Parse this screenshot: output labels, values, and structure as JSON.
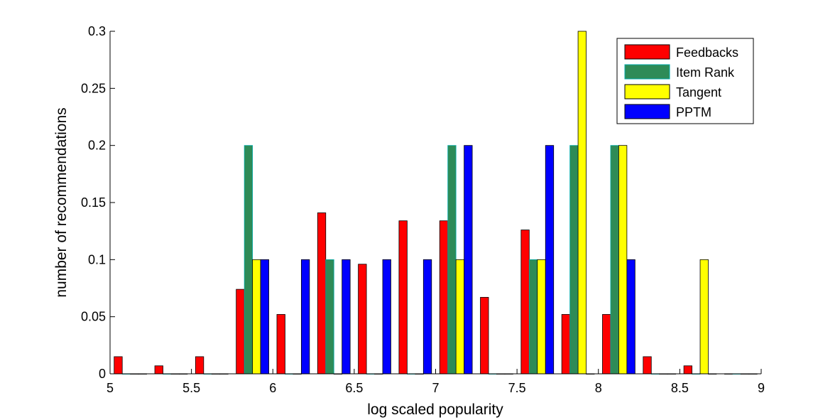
{
  "chart_data": {
    "type": "bar",
    "xlabel": "log scaled popularity",
    "ylabel": "number of recommendations",
    "xlim": [
      5,
      9
    ],
    "ylim": [
      0,
      0.3
    ],
    "xticks": [
      "5",
      "5.5",
      "6",
      "6.5",
      "7",
      "7.5",
      "8",
      "8.5",
      "9"
    ],
    "yticks": [
      "0",
      "0.05",
      "0.1",
      "0.15",
      "0.2",
      "0.25",
      "0.3"
    ],
    "legend_position": "top-right",
    "grid": false,
    "bin_centers": [
      5.125,
      5.375,
      5.625,
      5.875,
      6.125,
      6.375,
      6.625,
      6.875,
      7.125,
      7.375,
      7.625,
      7.875,
      8.125,
      8.375,
      8.625,
      8.875
    ],
    "series": [
      {
        "name": "Feedbacks",
        "color": "#ff0000",
        "values": [
          0.015,
          0.007,
          0.015,
          0.074,
          0.052,
          0.141,
          0.096,
          0.134,
          0.134,
          0.067,
          0.126,
          0.052,
          0.052,
          0.015,
          0.007,
          0.0
        ]
      },
      {
        "name": "Item Rank",
        "color": "#2e8b57",
        "edge": "#00aaaa",
        "values": [
          0.0,
          0.0,
          0.0,
          0.2,
          0.0,
          0.1,
          0.0,
          0.0,
          0.2,
          0.0,
          0.1,
          0.2,
          0.2,
          0.0,
          0.0,
          0.0
        ]
      },
      {
        "name": "Tangent",
        "color": "#ffff00",
        "values": [
          0.0,
          0.0,
          0.0,
          0.1,
          0.0,
          0.0,
          0.0,
          0.0,
          0.1,
          0.0,
          0.1,
          0.3,
          0.2,
          0.0,
          0.1,
          0.0
        ]
      },
      {
        "name": "PPTM",
        "color": "#0000ff",
        "values": [
          0.0,
          0.0,
          0.0,
          0.1,
          0.1,
          0.1,
          0.1,
          0.1,
          0.2,
          0.0,
          0.2,
          0.0,
          0.1,
          0.0,
          0.0,
          0.0
        ]
      }
    ]
  }
}
